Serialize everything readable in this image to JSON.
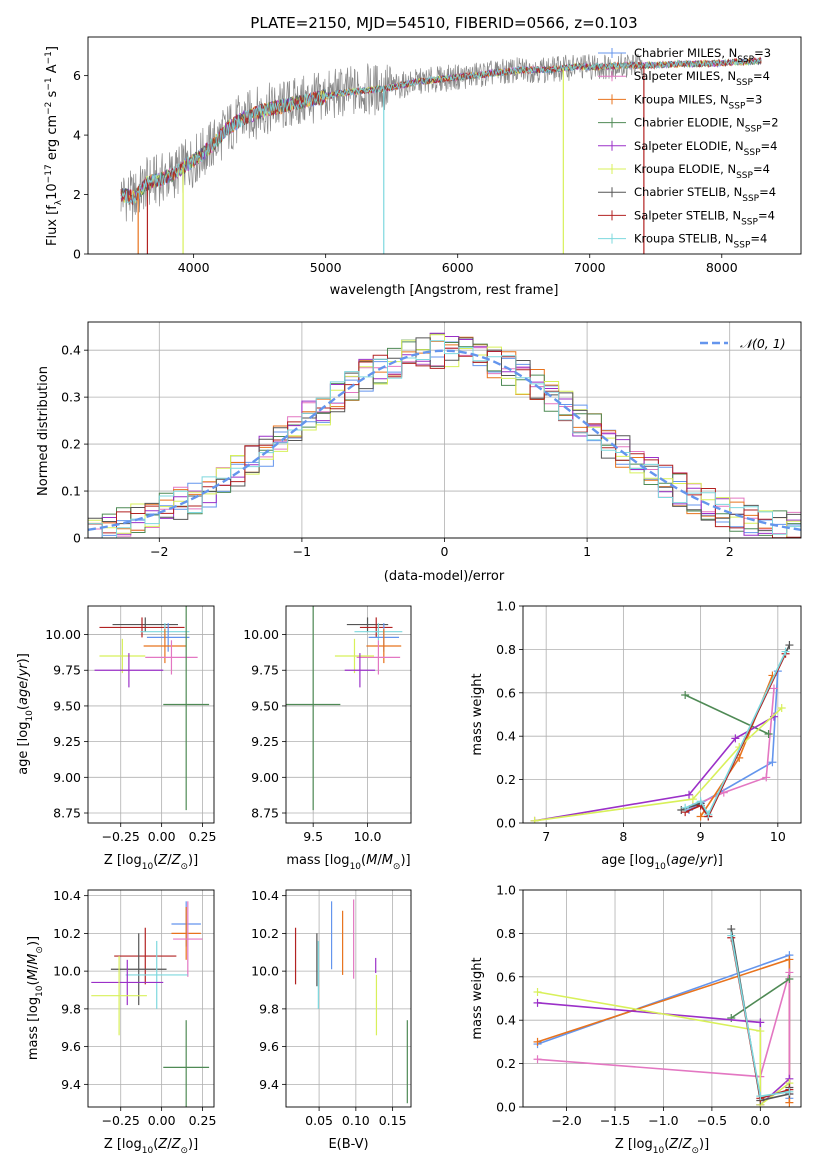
{
  "colors": {
    "chab_miles": "#6495ed",
    "salp_miles": "#e377c2",
    "krou_miles": "#e8731d",
    "chab_elodie": "#4f8a55",
    "salp_elodie": "#9b30c8",
    "krou_elodie": "#d8f05a",
    "chab_stelib": "#555555",
    "salp_stelib": "#b22222",
    "krou_stelib": "#7dd8de",
    "data_grey": "#888888",
    "normal_curve": "#6495ed"
  },
  "chart_data": [
    {
      "id": "spectrum",
      "type": "line",
      "title": "PLATE=2150, MJD=54510, FIBERID=0566, z=0.103",
      "xlabel": "wavelength [Angstrom, rest frame]",
      "ylabel_parts": [
        "Flux [f",
        "λ",
        "10",
        "−17",
        " erg cm",
        "−2",
        " s",
        "−1",
        " A",
        "−1",
        "]"
      ],
      "xlim": [
        3200,
        8600
      ],
      "ylim": [
        0,
        7.3
      ],
      "xticks": [
        4000,
        5000,
        6000,
        7000,
        8000
      ],
      "yticks": [
        0,
        2,
        4,
        6
      ],
      "grid": false,
      "legend_position": "upper-right",
      "legend": [
        {
          "label": "Chabrier MILES, N",
          "sub": "SSP",
          "suffix": "=3",
          "color": "chab_miles"
        },
        {
          "label": "Salpeter MILES, N",
          "sub": "SSP",
          "suffix": "=4",
          "color": "salp_miles"
        },
        {
          "label": "Kroupa MILES, N",
          "sub": "SSP",
          "suffix": "=3",
          "color": "krou_miles"
        },
        {
          "label": "Chabrier ELODIE, N",
          "sub": "SSP",
          "suffix": "=2",
          "color": "chab_elodie"
        },
        {
          "label": "Salpeter ELODIE, N",
          "sub": "SSP",
          "suffix": "=4",
          "color": "salp_elodie"
        },
        {
          "label": "Kroupa ELODIE, N",
          "sub": "SSP",
          "suffix": "=4",
          "color": "krou_elodie"
        },
        {
          "label": "Chabrier STELIB, N",
          "sub": "SSP",
          "suffix": "=4",
          "color": "chab_stelib"
        },
        {
          "label": "Salpeter STELIB, N",
          "sub": "SSP",
          "suffix": "=4",
          "color": "salp_stelib"
        },
        {
          "label": "Kroupa STELIB, N",
          "sub": "SSP",
          "suffix": "=4",
          "color": "krou_stelib"
        }
      ],
      "continuum": {
        "x": [
          3450,
          3550,
          3650,
          3750,
          3850,
          3950,
          4050,
          4150,
          4250,
          4350,
          4500,
          4700,
          4900,
          5100,
          5300,
          5500,
          5700,
          5900,
          6100,
          6300,
          6500,
          6700,
          6900,
          7100,
          7300,
          7500,
          7700,
          7900,
          8100,
          8300
        ],
        "y": [
          2.0,
          1.9,
          2.4,
          2.5,
          2.7,
          3.0,
          3.3,
          3.7,
          4.2,
          4.5,
          4.8,
          5.0,
          5.2,
          5.4,
          5.5,
          5.6,
          5.8,
          5.9,
          6.0,
          6.1,
          6.2,
          6.2,
          6.3,
          6.3,
          6.35,
          6.35,
          6.4,
          6.4,
          6.45,
          6.5
        ]
      },
      "spikes": [
        {
          "x": 3580,
          "color": "krou_miles"
        },
        {
          "x": 3650,
          "color": "salp_stelib"
        },
        {
          "x": 3920,
          "color": "krou_elodie"
        },
        {
          "x": 5440,
          "color": "krou_stelib"
        },
        {
          "x": 6800,
          "color": "krou_elodie"
        },
        {
          "x": 7410,
          "color": "salp_stelib"
        }
      ]
    },
    {
      "id": "residuals",
      "type": "histogram",
      "xlabel": "(data-model)/error",
      "ylabel": "Normed distribution",
      "xlim": [
        -2.5,
        2.5
      ],
      "ylim": [
        0,
        0.46
      ],
      "xticks": [
        -2,
        -1,
        0,
        1,
        2
      ],
      "yticks": [
        0.0,
        0.1,
        0.2,
        0.3,
        0.4
      ],
      "grid": true,
      "legend_position": "upper-right",
      "legend_label": "𝒩(0, 1)",
      "bin_edges_range": [
        -2.5,
        2.5
      ],
      "n_bins": 50
    },
    {
      "id": "z_age",
      "type": "errorbar",
      "xlabel": "Z [log10(Z/Z⊙)]",
      "ylabel": "age  [log10(age/yr)]",
      "xlim": [
        -0.45,
        0.32
      ],
      "ylim": [
        8.68,
        10.2
      ],
      "xticks": [
        -0.25,
        0.0,
        0.25
      ],
      "xticklabels": [
        "−0.25",
        "0.00",
        "0.25"
      ],
      "yticks": [
        8.75,
        9.0,
        9.25,
        9.5,
        9.75,
        10.0
      ],
      "yticklabels": [
        "8.75",
        "9.00",
        "9.25",
        "9.50",
        "9.75",
        "10.00"
      ],
      "grid": true,
      "points": [
        {
          "x": -0.1,
          "xerr": 0.2,
          "y": 10.07,
          "yerr": 0.05,
          "color": "chab_stelib"
        },
        {
          "x": -0.12,
          "xerr": 0.26,
          "y": 10.05,
          "yerr": 0.07,
          "color": "salp_stelib"
        },
        {
          "x": 0.02,
          "xerr": 0.15,
          "y": 10.02,
          "yerr": 0.06,
          "color": "krou_stelib"
        },
        {
          "x": 0.04,
          "xerr": 0.13,
          "y": 9.98,
          "yerr": 0.1,
          "color": "chab_miles"
        },
        {
          "x": 0.02,
          "xerr": 0.13,
          "y": 9.92,
          "yerr": 0.12,
          "color": "krou_miles"
        },
        {
          "x": 0.06,
          "xerr": 0.16,
          "y": 9.84,
          "yerr": 0.12,
          "color": "salp_miles"
        },
        {
          "x": -0.24,
          "xerr": 0.14,
          "y": 9.85,
          "yerr": 0.12,
          "color": "krou_elodie"
        },
        {
          "x": -0.2,
          "xerr": 0.21,
          "y": 9.75,
          "yerr": 0.12,
          "color": "salp_elodie"
        },
        {
          "x": 0.15,
          "xerr": 0.14,
          "y": 9.51,
          "yerr": 0.74,
          "color": "chab_elodie"
        }
      ]
    },
    {
      "id": "mass_age",
      "type": "errorbar",
      "xlabel": "mass [log10(M/M⊙)]",
      "xlim": [
        9.25,
        10.4
      ],
      "ylim": [
        8.68,
        10.2
      ],
      "xticks": [
        9.5,
        10.0
      ],
      "xticklabels": [
        "9.5",
        "10.0"
      ],
      "yticks": [
        8.75,
        9.0,
        9.25,
        9.5,
        9.75,
        10.0
      ],
      "yticklabels": [
        "8.75",
        "9.00",
        "9.25",
        "9.50",
        "9.75",
        "10.00"
      ],
      "grid": true,
      "points": [
        {
          "x": 10.0,
          "xerr": 0.19,
          "y": 10.07,
          "yerr": 0.05,
          "color": "chab_stelib"
        },
        {
          "x": 10.08,
          "xerr": 0.15,
          "y": 10.05,
          "yerr": 0.07,
          "color": "salp_stelib"
        },
        {
          "x": 10.1,
          "xerr": 0.22,
          "y": 10.02,
          "yerr": 0.06,
          "color": "krou_stelib"
        },
        {
          "x": 10.15,
          "xerr": 0.14,
          "y": 9.98,
          "yerr": 0.1,
          "color": "chab_miles"
        },
        {
          "x": 10.15,
          "xerr": 0.16,
          "y": 9.92,
          "yerr": 0.12,
          "color": "krou_miles"
        },
        {
          "x": 10.1,
          "xerr": 0.2,
          "y": 9.84,
          "yerr": 0.12,
          "color": "salp_miles"
        },
        {
          "x": 9.88,
          "xerr": 0.18,
          "y": 9.85,
          "yerr": 0.12,
          "color": "krou_elodie"
        },
        {
          "x": 9.93,
          "xerr": 0.14,
          "y": 9.75,
          "yerr": 0.12,
          "color": "salp_elodie"
        },
        {
          "x": 9.5,
          "xerr": 0.25,
          "y": 9.51,
          "yerr": 0.74,
          "color": "chab_elodie"
        }
      ]
    },
    {
      "id": "age_weight",
      "type": "line",
      "xlabel": "age  [log10(age/yr)]",
      "ylabel": "mass weight",
      "xlim": [
        6.7,
        10.3
      ],
      "ylim": [
        0,
        1.0
      ],
      "xticks": [
        7,
        8,
        9,
        10
      ],
      "xticklabels": [
        "7",
        "8",
        "9",
        "10"
      ],
      "yticks": [
        0.0,
        0.2,
        0.4,
        0.6,
        0.8,
        1.0
      ],
      "yticklabels": [
        "0.0",
        "0.2",
        "0.4",
        "0.6",
        "0.8",
        "1.0"
      ],
      "grid": true,
      "series": [
        {
          "color": "chab_miles",
          "x": [
            8.85,
            9.0,
            9.93,
            10.0
          ],
          "y": [
            0.06,
            0.09,
            0.28,
            0.7
          ]
        },
        {
          "color": "salp_miles",
          "x": [
            8.9,
            9.3,
            9.85,
            9.95
          ],
          "y": [
            0.08,
            0.14,
            0.21,
            0.62
          ]
        },
        {
          "color": "krou_miles",
          "x": [
            9.0,
            9.5,
            9.93
          ],
          "y": [
            0.03,
            0.3,
            0.68
          ]
        },
        {
          "color": "chab_elodie",
          "x": [
            8.8,
            9.88
          ],
          "y": [
            0.59,
            0.41
          ]
        },
        {
          "color": "salp_elodie",
          "x": [
            6.85,
            8.85,
            9.45,
            9.95
          ],
          "y": [
            0.01,
            0.13,
            0.39,
            0.49
          ]
        },
        {
          "color": "krou_elodie",
          "x": [
            6.85,
            8.9,
            9.5,
            10.05
          ],
          "y": [
            0.01,
            0.11,
            0.35,
            0.53
          ]
        },
        {
          "color": "chab_stelib",
          "x": [
            8.75,
            9.0,
            9.1,
            10.15
          ],
          "y": [
            0.06,
            0.09,
            0.03,
            0.82
          ]
        },
        {
          "color": "salp_stelib",
          "x": [
            8.8,
            9.0,
            9.1,
            10.1
          ],
          "y": [
            0.05,
            0.08,
            0.03,
            0.78
          ]
        },
        {
          "color": "krou_stelib",
          "x": [
            8.8,
            9.0,
            9.1,
            10.1
          ],
          "y": [
            0.07,
            0.1,
            0.04,
            0.79
          ]
        }
      ]
    },
    {
      "id": "z_mass",
      "type": "errorbar",
      "xlabel": "Z [log10(Z/Z⊙)]",
      "ylabel": "mass [log10(M/M⊙)]",
      "xlim": [
        -0.45,
        0.32
      ],
      "ylim": [
        9.28,
        10.43
      ],
      "xticks": [
        -0.25,
        0.0,
        0.25
      ],
      "xticklabels": [
        "−0.25",
        "0.00",
        "0.25"
      ],
      "yticks": [
        9.4,
        9.6,
        9.8,
        10.0,
        10.2,
        10.4
      ],
      "yticklabels": [
        "9.4",
        "9.6",
        "9.8",
        "10.0",
        "10.2",
        "10.4"
      ],
      "grid": true,
      "points": [
        {
          "x": 0.15,
          "xerr": 0.09,
          "y": 10.25,
          "yerr": 0.12,
          "color": "chab_miles"
        },
        {
          "x": 0.15,
          "xerr": 0.09,
          "y": 10.2,
          "yerr": 0.14,
          "color": "krou_miles"
        },
        {
          "x": 0.16,
          "xerr": 0.09,
          "y": 10.17,
          "yerr": 0.2,
          "color": "salp_miles"
        },
        {
          "x": -0.1,
          "xerr": 0.19,
          "y": 10.08,
          "yerr": 0.15,
          "color": "salp_stelib"
        },
        {
          "x": -0.14,
          "xerr": 0.17,
          "y": 10.01,
          "yerr": 0.19,
          "color": "chab_stelib"
        },
        {
          "x": -0.03,
          "xerr": 0.19,
          "y": 9.98,
          "yerr": 0.18,
          "color": "krou_stelib"
        },
        {
          "x": -0.21,
          "xerr": 0.22,
          "y": 9.94,
          "yerr": 0.12,
          "color": "salp_elodie"
        },
        {
          "x": -0.26,
          "xerr": 0.17,
          "y": 9.87,
          "yerr": 0.21,
          "color": "krou_elodie"
        },
        {
          "x": 0.15,
          "xerr": 0.14,
          "y": 9.49,
          "yerr": 0.25,
          "color": "chab_elodie"
        }
      ]
    },
    {
      "id": "ebv_mass",
      "type": "errorbar",
      "xlabel": "E(B-V)",
      "xlim": [
        0.005,
        0.175
      ],
      "ylim": [
        9.28,
        10.43
      ],
      "xticks": [
        0.05,
        0.1,
        0.15
      ],
      "xticklabels": [
        "0.05",
        "0.10",
        "0.15"
      ],
      "yticks": [
        9.4,
        9.6,
        9.8,
        10.0,
        10.2,
        10.4
      ],
      "yticklabels": [
        "9.4",
        "9.6",
        "9.8",
        "10.0",
        "10.2",
        "10.4"
      ],
      "grid": true,
      "points": [
        {
          "x": 0.018,
          "y": 10.08,
          "yerr": 0.15,
          "color": "salp_stelib"
        },
        {
          "x": 0.047,
          "y": 10.06,
          "yerr": 0.14,
          "color": "chab_stelib"
        },
        {
          "x": 0.049,
          "y": 9.98,
          "yerr": 0.18,
          "color": "krou_stelib"
        },
        {
          "x": 0.067,
          "y": 10.19,
          "yerr": 0.18,
          "color": "chab_miles"
        },
        {
          "x": 0.082,
          "y": 10.15,
          "yerr": 0.17,
          "color": "krou_miles"
        },
        {
          "x": 0.097,
          "y": 10.17,
          "yerr": 0.21,
          "color": "salp_miles"
        },
        {
          "x": 0.127,
          "y": 10.03,
          "yerr": 0.04,
          "color": "salp_elodie"
        },
        {
          "x": 0.128,
          "y": 9.82,
          "yerr": 0.16,
          "color": "krou_elodie"
        },
        {
          "x": 0.17,
          "y": 9.52,
          "yerr": 0.22,
          "color": "chab_elodie"
        }
      ]
    },
    {
      "id": "z_weight",
      "type": "line",
      "xlabel": "Z [log10(Z/Z⊙)]",
      "ylabel": "mass weight",
      "xlim": [
        -2.45,
        0.42
      ],
      "ylim": [
        0,
        1.0
      ],
      "xticks": [
        -2.0,
        -1.5,
        -1.0,
        -0.5,
        0.0
      ],
      "xticklabels": [
        "−2.0",
        "−1.5",
        "−1.0",
        "−0.5",
        "0.0"
      ],
      "yticks": [
        0.0,
        0.2,
        0.4,
        0.6,
        0.8,
        1.0
      ],
      "yticklabels": [
        "0.0",
        "0.2",
        "0.4",
        "0.6",
        "0.8",
        "1.0"
      ],
      "grid": true,
      "series": [
        {
          "color": "chab_miles",
          "x": [
            -2.3,
            0.3,
            0.3
          ],
          "y": [
            0.29,
            0.7,
            0.04
          ]
        },
        {
          "color": "krou_miles",
          "x": [
            -2.3,
            0.3,
            0.3
          ],
          "y": [
            0.3,
            0.68,
            0.02
          ]
        },
        {
          "color": "salp_miles",
          "x": [
            -2.3,
            0.0,
            0.3,
            0.3
          ],
          "y": [
            0.22,
            0.14,
            0.62,
            0.06
          ]
        },
        {
          "color": "chab_elodie",
          "x": [
            -0.3,
            0.3
          ],
          "y": [
            0.41,
            0.59
          ]
        },
        {
          "color": "salp_elodie",
          "x": [
            -2.3,
            0.0,
            0.0,
            0.3
          ],
          "y": [
            0.48,
            0.39,
            0.01,
            0.13
          ]
        },
        {
          "color": "krou_elodie",
          "x": [
            -2.3,
            0.0,
            0.0,
            0.3
          ],
          "y": [
            0.53,
            0.35,
            0.01,
            0.11
          ]
        },
        {
          "color": "chab_stelib",
          "x": [
            -0.3,
            0.0,
            0.3,
            0.3
          ],
          "y": [
            0.82,
            0.03,
            0.06,
            0.09
          ]
        },
        {
          "color": "salp_stelib",
          "x": [
            -0.3,
            0.0,
            0.3
          ],
          "y": [
            0.78,
            0.04,
            0.08
          ]
        },
        {
          "color": "krou_stelib",
          "x": [
            -0.3,
            0.0,
            0.3
          ],
          "y": [
            0.79,
            0.05,
            0.07
          ]
        }
      ]
    }
  ]
}
